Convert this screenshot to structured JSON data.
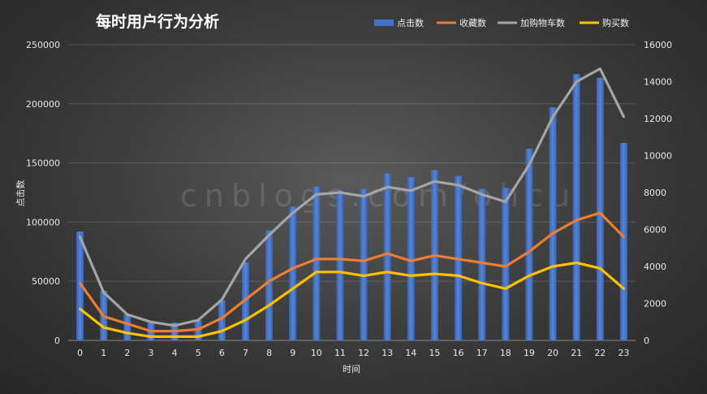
{
  "chart_data": {
    "type": "bar",
    "title": "每时用户行为分析",
    "xlabel": "时间",
    "ylabel": "点击数",
    "ylim": [
      0,
      250000
    ],
    "y2lim": [
      0,
      16000
    ],
    "y_ticks": [
      "0",
      "50000",
      "100000",
      "150000",
      "200000",
      "250000"
    ],
    "y2_ticks": [
      "0",
      "2000",
      "4000",
      "6000",
      "8000",
      "10000",
      "12000",
      "14000",
      "16000"
    ],
    "categories": [
      "0",
      "1",
      "2",
      "3",
      "4",
      "5",
      "6",
      "7",
      "8",
      "9",
      "10",
      "11",
      "12",
      "13",
      "14",
      "15",
      "16",
      "17",
      "18",
      "19",
      "20",
      "21",
      "22",
      "23"
    ],
    "grid": true,
    "legend_position": "top-right",
    "watermark": "cnblogs.com/ohcu",
    "series": [
      {
        "name": "点击数",
        "type": "bar",
        "axis": "left",
        "color": "#4472c4",
        "values": [
          92000,
          42000,
          22000,
          15000,
          15000,
          17000,
          34000,
          66000,
          93000,
          113000,
          130000,
          127000,
          128000,
          141000,
          138000,
          144000,
          139000,
          128000,
          129000,
          162000,
          197000,
          225000,
          222000,
          167000
        ]
      },
      {
        "name": "收藏数",
        "type": "line",
        "axis": "right",
        "color": "#ed7d31",
        "values": [
          3100,
          1300,
          900,
          500,
          500,
          600,
          1200,
          2200,
          3200,
          3900,
          4400,
          4400,
          4300,
          4700,
          4300,
          4600,
          4400,
          4200,
          4000,
          4800,
          5800,
          6500,
          6900,
          5600
        ]
      },
      {
        "name": "加购物车数",
        "type": "line",
        "axis": "right",
        "color": "#a5a5a5",
        "values": [
          5600,
          2600,
          1400,
          1000,
          800,
          1100,
          2200,
          4400,
          5700,
          6900,
          7900,
          8000,
          7800,
          8300,
          8100,
          8600,
          8400,
          7900,
          7500,
          9500,
          12100,
          14000,
          14700,
          12100
        ]
      },
      {
        "name": "购买数",
        "type": "line",
        "axis": "right",
        "color": "#ffc000",
        "values": [
          1700,
          700,
          400,
          200,
          200,
          200,
          500,
          1100,
          1900,
          2800,
          3700,
          3700,
          3500,
          3700,
          3500,
          3600,
          3500,
          3100,
          2800,
          3500,
          4000,
          4200,
          3900,
          2800
        ]
      }
    ]
  }
}
